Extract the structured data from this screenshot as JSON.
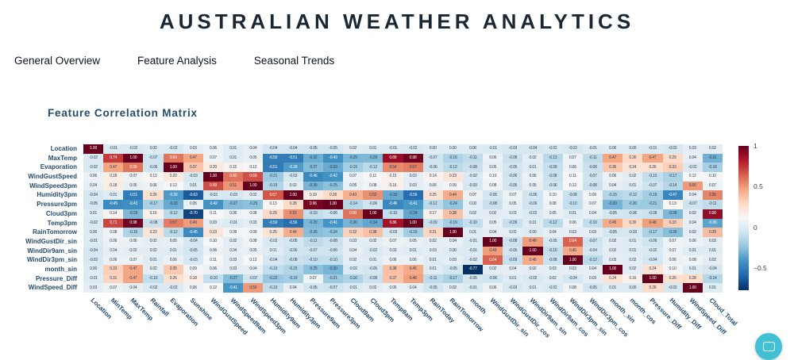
{
  "app": {
    "title": "AUSTRALIAN WEATHER ANALYTICS"
  },
  "tabs": [
    {
      "label": "General Overview"
    },
    {
      "label": "Feature Analysis"
    },
    {
      "label": "Seasonal Trends"
    }
  ],
  "section": {
    "title": "Feature Correlation Matrix"
  },
  "colors": {
    "heading": "#254b6d",
    "max_red": "#67001f",
    "min_blue": "#053061",
    "fab_teal": "#43c1d4"
  },
  "chart_data": {
    "type": "heatmap",
    "title": "Feature Correlation Matrix",
    "colorscale": "RdBu_r",
    "zmin": -0.77,
    "zmax": 1.0,
    "legend_position": "right",
    "colorbar_ticks": [
      {
        "value": 1,
        "label": "1"
      },
      {
        "value": 0.5,
        "label": "0.5"
      },
      {
        "value": 0,
        "label": "0"
      },
      {
        "value": -0.5,
        "label": "−0.5"
      }
    ],
    "rows": [
      "Location",
      "MaxTemp",
      "Evaporation",
      "WindGustSpeed",
      "WindSpeed3pm",
      "Humidity3pm",
      "Pressure3pm",
      "Cloud3pm",
      "Temp3pm",
      "RainTomorrow",
      "WindGustDir_sin",
      "WindDir9am_sin",
      "WindDir3pm_sin",
      "month_sin",
      "Pressure_Diff",
      "WindSpeed_Diff"
    ],
    "columns": [
      "Location",
      "MinTemp",
      "MaxTemp",
      "Rainfall",
      "Evaporation",
      "Sunshine",
      "WindGustSpeed",
      "WindSpeed9am",
      "WindSpeed3pm",
      "Humidity9am",
      "Humidity3pm",
      "Pressure9am",
      "Pressure3pm",
      "Cloud9am",
      "Cloud3pm",
      "Temp9am",
      "Temp3pm",
      "RainToday",
      "RainTomorrow",
      "month",
      "WindGustDir_sin",
      "WindGustDir_cos",
      "WindDir9am_sin",
      "WindDir9am_cos",
      "WindDir3pm_sin",
      "WindDir3pm_cos",
      "month_sin",
      "month_cos",
      "Pressure_Diff",
      "Humidity_Diff",
      "WindSpeed_Diff",
      "Cloud_Total"
    ],
    "values": [
      [
        1.0,
        -0.01,
        -0.02,
        0.0,
        -0.02,
        0.03,
        0.06,
        0.01,
        0.04,
        -0.04,
        -0.04,
        -0.05,
        -0.05,
        0.02,
        0.01,
        -0.01,
        -0.02,
        0.0,
        0.0,
        0.0,
        -0.01,
        -0.03,
        -0.04,
        -0.02,
        -0.03,
        -0.01,
        0.0,
        0.0,
        -0.01,
        -0.03,
        0.03,
        0.02
      ],
      [
        -0.02,
        0.74,
        1.0,
        -0.07,
        0.59,
        0.47,
        0.07,
        0.01,
        0.05,
        -0.5,
        -0.51,
        -0.32,
        -0.43,
        -0.29,
        -0.28,
        0.89,
        0.98,
        -0.07,
        -0.16,
        -0.11,
        0.06,
        -0.08,
        0.02,
        -0.13,
        0.07,
        -0.11,
        0.47,
        0.3,
        0.47,
        0.29,
        0.04,
        -0.31
      ],
      [
        -0.02,
        0.47,
        0.59,
        -0.06,
        1.0,
        0.37,
        0.2,
        0.15,
        0.12,
        -0.51,
        -0.39,
        -0.27,
        -0.33,
        -0.19,
        -0.12,
        0.54,
        0.57,
        -0.06,
        -0.12,
        -0.08,
        0.05,
        -0.05,
        0.01,
        -0.09,
        0.06,
        -0.08,
        0.35,
        0.24,
        0.26,
        0.33,
        -0.02,
        -0.18
      ],
      [
        0.06,
        0.18,
        0.07,
        0.13,
        0.2,
        -0.03,
        1.0,
        0.6,
        0.69,
        -0.21,
        -0.03,
        -0.46,
        -0.42,
        0.07,
        0.11,
        0.15,
        0.03,
        0.14,
        0.23,
        -0.02,
        0.1,
        -0.06,
        0.06,
        -0.08,
        0.11,
        -0.07,
        0.06,
        0.02,
        -0.1,
        -0.17,
        0.12,
        0.1
      ],
      [
        0.04,
        0.18,
        0.05,
        0.06,
        0.12,
        0.01,
        0.69,
        0.51,
        1.0,
        -0.15,
        0.02,
        -0.3,
        -0.25,
        0.05,
        0.08,
        0.16,
        0.03,
        0.06,
        0.09,
        -0.03,
        0.08,
        -0.05,
        0.05,
        -0.06,
        0.12,
        -0.08,
        0.04,
        0.01,
        -0.07,
        -0.14,
        0.5,
        0.07
      ],
      [
        -0.04,
        0.01,
        -0.51,
        0.26,
        -0.39,
        -0.63,
        -0.03,
        -0.03,
        0.02,
        0.67,
        1.0,
        0.19,
        0.28,
        0.43,
        0.52,
        -0.33,
        -0.56,
        0.25,
        0.44,
        0.07,
        -0.05,
        0.07,
        -0.06,
        0.1,
        -0.08,
        0.09,
        -0.15,
        -0.12,
        -0.19,
        -0.47,
        0.04,
        0.55
      ],
      [
        -0.05,
        -0.45,
        -0.43,
        -0.17,
        -0.33,
        0.05,
        -0.42,
        -0.27,
        -0.25,
        0.13,
        0.28,
        0.96,
        1.0,
        -0.14,
        -0.06,
        -0.46,
        -0.41,
        -0.12,
        -0.24,
        0.03,
        -0.08,
        0.05,
        -0.06,
        0.08,
        -0.1,
        0.07,
        -0.3,
        -0.2,
        -0.21,
        0.13,
        -0.07,
        -0.11
      ],
      [
        0.01,
        0.14,
        -0.28,
        0.16,
        -0.12,
        -0.7,
        0.11,
        0.06,
        0.08,
        0.29,
        0.52,
        -0.1,
        -0.06,
        0.6,
        1.0,
        -0.1,
        -0.34,
        0.17,
        0.38,
        0.02,
        0.02,
        0.03,
        -0.02,
        0.05,
        0.01,
        0.04,
        -0.05,
        -0.06,
        -0.08,
        -0.28,
        0.02,
        0.9
      ],
      [
        -0.02,
        0.71,
        0.98,
        -0.08,
        0.57,
        0.49,
        0.03,
        -0.01,
        0.03,
        -0.5,
        -0.56,
        -0.29,
        -0.41,
        -0.3,
        -0.34,
        0.86,
        1.0,
        -0.09,
        -0.19,
        -0.1,
        0.05,
        -0.09,
        0.01,
        -0.12,
        0.06,
        -0.1,
        0.45,
        0.3,
        0.48,
        0.33,
        0.04,
        -0.36
      ],
      [
        0.0,
        0.08,
        -0.16,
        0.23,
        -0.12,
        -0.45,
        0.23,
        0.09,
        0.09,
        0.25,
        0.44,
        -0.26,
        -0.24,
        0.32,
        0.38,
        -0.03,
        -0.19,
        0.31,
        1.0,
        0.01,
        0.04,
        0.02,
        0.0,
        0.04,
        0.03,
        0.03,
        -0.05,
        -0.03,
        -0.17,
        -0.26,
        0.02,
        0.39
      ],
      [
        -0.01,
        0.06,
        0.06,
        0.02,
        0.05,
        -0.04,
        0.1,
        0.02,
        0.08,
        -0.02,
        -0.05,
        -0.11,
        -0.08,
        0.03,
        0.02,
        0.07,
        0.05,
        0.02,
        0.04,
        -0.01,
        1.0,
        -0.08,
        0.49,
        -0.05,
        0.64,
        -0.07,
        0.02,
        0.01,
        -0.06,
        0.07,
        0.06,
        0.03
      ],
      [
        -0.04,
        0.04,
        0.02,
        0.02,
        0.01,
        -0.05,
        0.06,
        0.04,
        0.05,
        0.01,
        -0.06,
        -0.07,
        -0.06,
        0.04,
        -0.02,
        0.03,
        0.01,
        0.03,
        0.0,
        -0.01,
        0.49,
        -0.05,
        1.0,
        -0.1,
        0.45,
        -0.04,
        0.02,
        0.01,
        -0.02,
        0.07,
        0.01,
        0.01
      ],
      [
        -0.03,
        0.06,
        0.07,
        0.01,
        0.06,
        -0.03,
        0.11,
        0.03,
        0.12,
        -0.04,
        -0.08,
        -0.1,
        -0.1,
        0.02,
        0.01,
        0.06,
        0.06,
        0.01,
        0.03,
        -0.02,
        0.64,
        -0.09,
        0.45,
        -0.08,
        1.0,
        -0.12,
        0.03,
        0.02,
        -0.04,
        0.06,
        0.08,
        0.02
      ],
      [
        0.0,
        0.33,
        0.47,
        0.02,
        0.35,
        0.09,
        0.06,
        0.03,
        0.04,
        -0.1,
        -0.15,
        -0.25,
        -0.3,
        -0.02,
        -0.05,
        0.38,
        0.45,
        0.01,
        -0.05,
        -0.77,
        0.02,
        0.04,
        0.02,
        0.03,
        0.03,
        0.04,
        1.0,
        0.02,
        0.24,
        0.1,
        0.01,
        -0.04
      ],
      [
        -0.01,
        0.31,
        0.47,
        -0.1,
        0.26,
        0.18,
        -0.1,
        -0.27,
        -0.07,
        -0.22,
        -0.19,
        0.07,
        -0.21,
        -0.16,
        -0.08,
        0.37,
        0.48,
        -0.11,
        -0.17,
        -0.05,
        -0.06,
        0.01,
        -0.02,
        0.02,
        -0.04,
        0.03,
        0.24,
        0.16,
        1.0,
        0.26,
        0.28,
        -0.14
      ],
      [
        0.03,
        0.07,
        0.04,
        -0.02,
        -0.02,
        0.06,
        0.12,
        -0.41,
        0.5,
        -0.1,
        0.04,
        -0.05,
        -0.07,
        -0.01,
        0.02,
        0.05,
        0.04,
        -0.05,
        0.02,
        -0.01,
        0.06,
        -0.03,
        0.01,
        -0.02,
        0.08,
        -0.05,
        0.01,
        0.0,
        0.28,
        -0.03,
        1.0,
        0.01
      ]
    ]
  }
}
